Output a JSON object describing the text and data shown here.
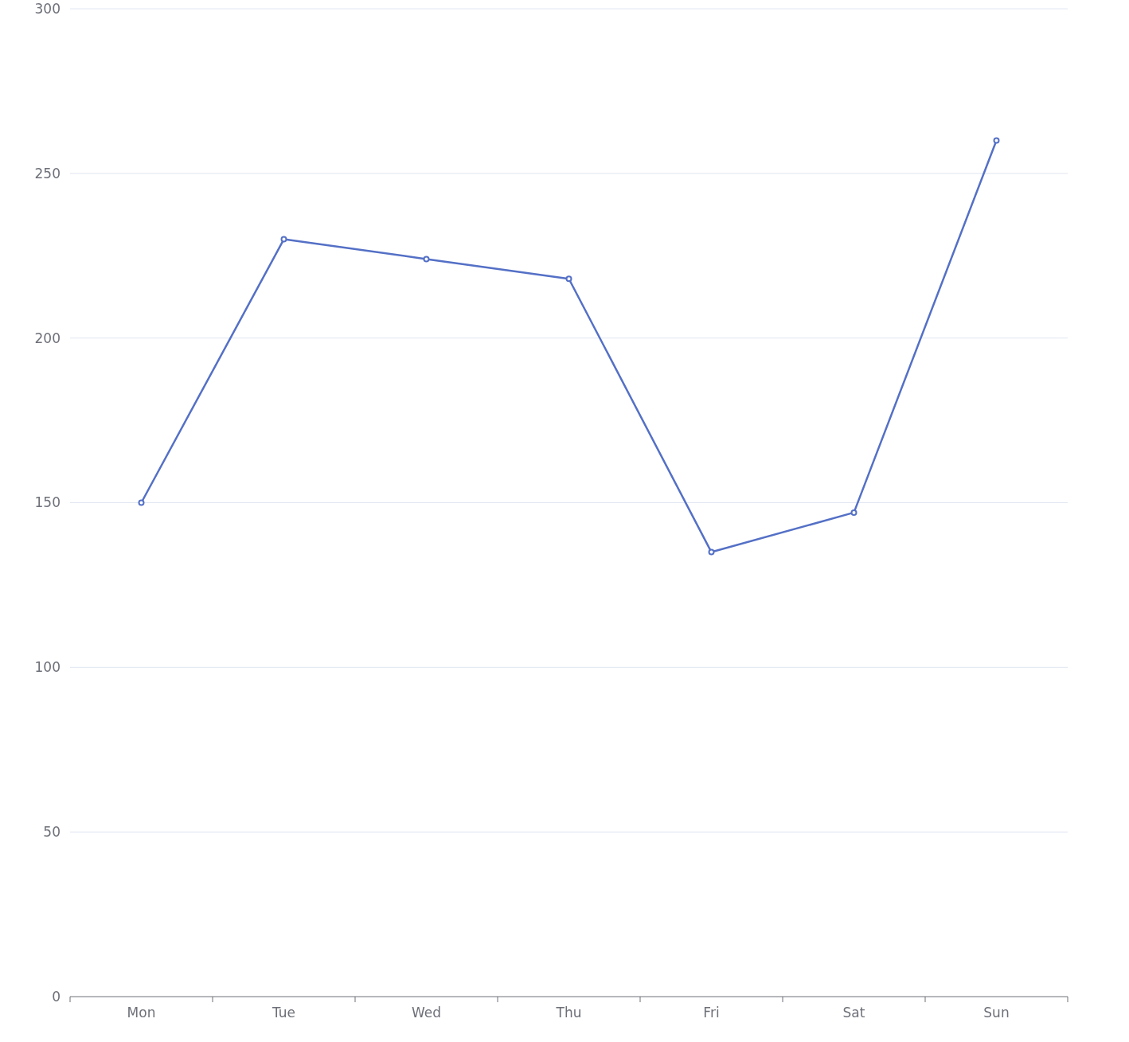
{
  "chart_data": {
    "type": "line",
    "categories": [
      "Mon",
      "Tue",
      "Wed",
      "Thu",
      "Fri",
      "Sat",
      "Sun"
    ],
    "series": [
      {
        "color": "#5470c6",
        "values": [
          150,
          230,
          224,
          218,
          135,
          147,
          260
        ]
      }
    ],
    "ylim": [
      0,
      300
    ],
    "yticks": [
      0,
      50,
      100,
      150,
      200,
      250,
      300
    ],
    "grid": "y",
    "marker": "circle",
    "line_style": "solid"
  }
}
